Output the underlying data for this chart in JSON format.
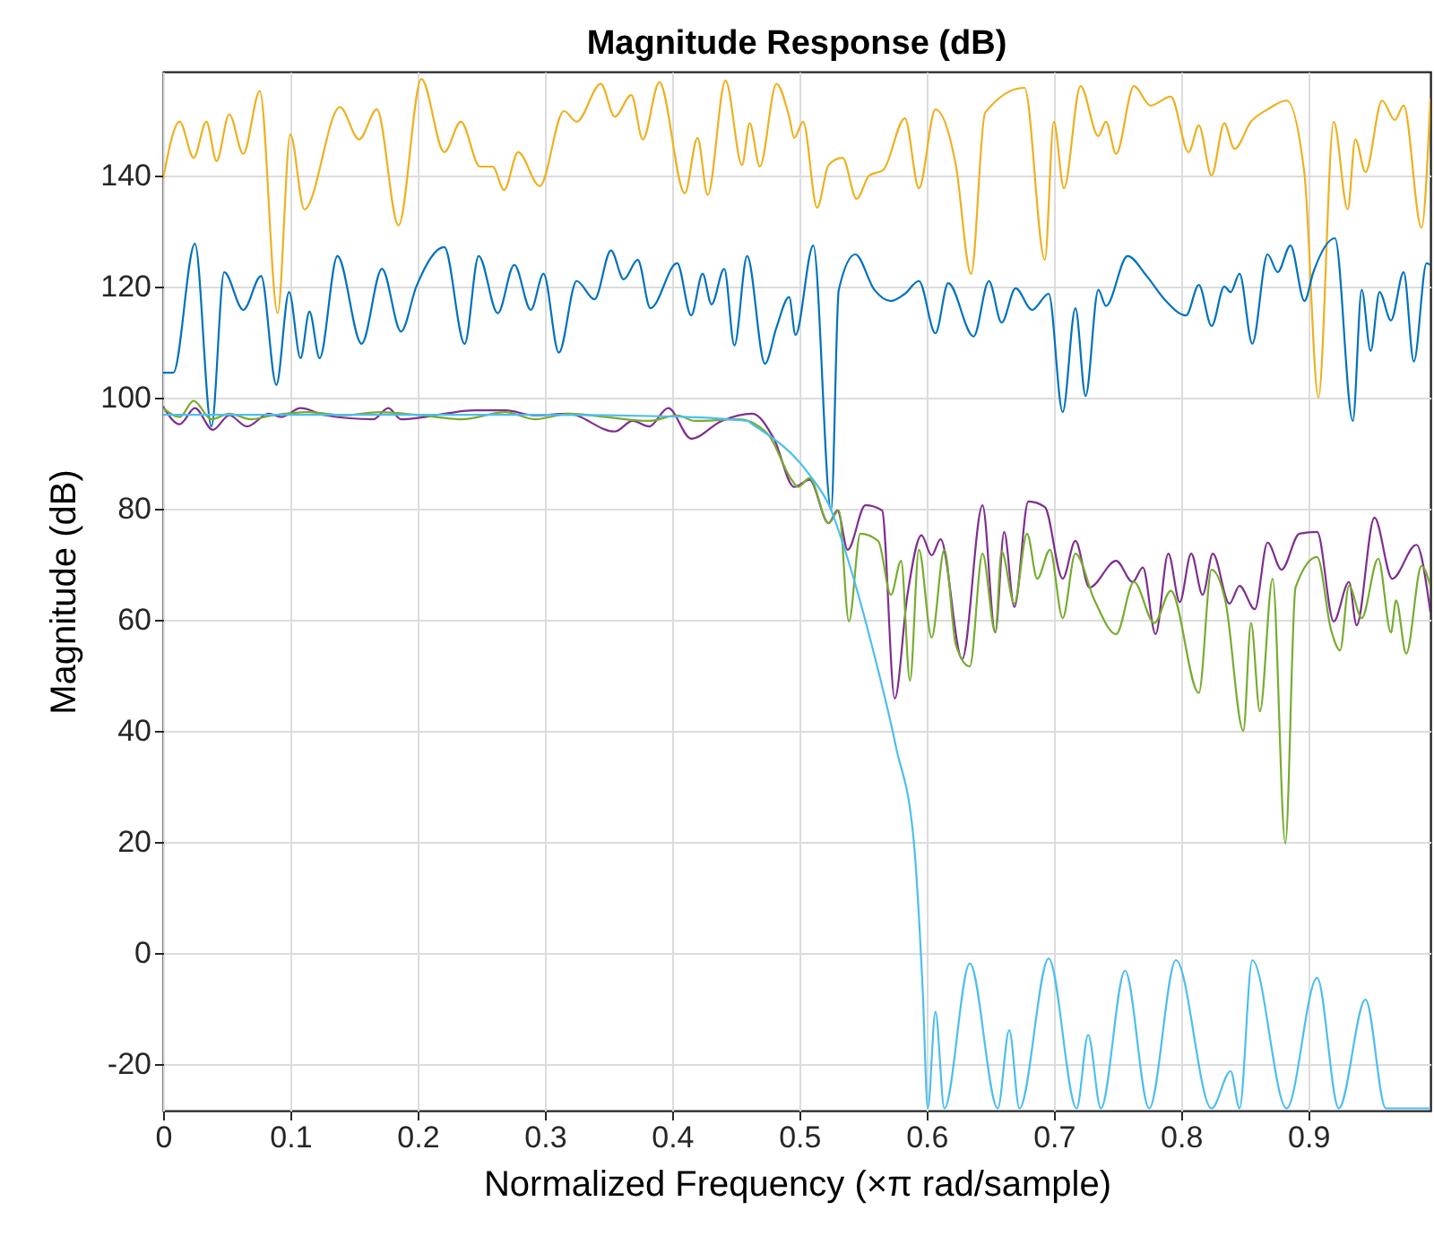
{
  "chart_data": {
    "type": "line",
    "title": "Magnitude Response (dB)",
    "xlabel": "Normalized Frequency (×π rad/sample)",
    "ylabel": "Magnitude (dB)",
    "xlim": [
      0,
      0.996
    ],
    "ylim": [
      -28.4,
      158.7
    ],
    "xticks": [
      0,
      0.1,
      0.2,
      0.3,
      0.4,
      0.5,
      0.6,
      0.7,
      0.8,
      0.9
    ],
    "yticks": [
      -20,
      0,
      20,
      40,
      60,
      80,
      100,
      120,
      140
    ],
    "grid": true,
    "marker": "none",
    "line_style": "solid",
    "series": [
      {
        "color": "#edb120",
        "x": [
          0,
          0.013,
          0.024,
          0.034,
          0.042,
          0.052,
          0.063,
          0.076,
          0.09,
          0.1,
          0.111,
          0.139,
          0.154,
          0.168,
          0.185,
          0.203,
          0.221,
          0.234,
          0.249,
          0.259,
          0.268,
          0.279,
          0.296,
          0.315,
          0.325,
          0.344,
          0.355,
          0.368,
          0.377,
          0.39,
          0.41,
          0.42,
          0.428,
          0.442,
          0.455,
          0.461,
          0.469,
          0.482,
          0.492,
          0.496,
          0.503,
          0.514,
          0.523,
          0.534,
          0.545,
          0.555,
          0.566,
          0.583,
          0.594,
          0.607,
          0.623,
          0.635,
          0.646,
          0.677,
          0.693,
          0.7,
          0.708,
          0.721,
          0.735,
          0.741,
          0.749,
          0.763,
          0.776,
          0.792,
          0.806,
          0.814,
          0.824,
          0.834,
          0.842,
          0.855,
          0.868,
          0.883,
          0.897,
          0.908,
          0.92,
          0.931,
          0.937,
          0.945,
          0.958,
          0.968,
          0.975,
          0.989,
          0.996
        ],
        "values": [
          139.4,
          149.7,
          143.2,
          149.7,
          142.6,
          151,
          143.9,
          155.2,
          115.2,
          147.4,
          133.9,
          152.3,
          146.5,
          151.9,
          131,
          157.4,
          144.2,
          149.7,
          141.6,
          141.6,
          137.4,
          144.2,
          138.1,
          151.6,
          149.7,
          156.5,
          150.6,
          154.5,
          146.5,
          156.8,
          136.8,
          146.8,
          136.5,
          157.1,
          141.9,
          149.4,
          141.6,
          156.5,
          150.6,
          146.8,
          149.7,
          134.2,
          141.9,
          143.2,
          135.8,
          140,
          141,
          150.3,
          137.7,
          151.9,
          141.9,
          122.3,
          151.3,
          155.8,
          124.8,
          149.7,
          137.7,
          156.1,
          147.1,
          149.7,
          143.9,
          156.1,
          152.6,
          154.2,
          144.2,
          149,
          140,
          149.4,
          144.8,
          149.7,
          151.9,
          153.5,
          140.3,
          100,
          149.7,
          133.9,
          146.5,
          140.6,
          153.5,
          150,
          152.6,
          130.6,
          153.9
        ]
      },
      {
        "color": "#0072bd",
        "x": [
          0,
          0.008,
          0.025,
          0.038,
          0.048,
          0.063,
          0.077,
          0.089,
          0.099,
          0.108,
          0.115,
          0.123,
          0.137,
          0.156,
          0.172,
          0.187,
          0.199,
          0.221,
          0.237,
          0.248,
          0.263,
          0.276,
          0.289,
          0.299,
          0.311,
          0.325,
          0.339,
          0.352,
          0.362,
          0.373,
          0.383,
          0.404,
          0.415,
          0.424,
          0.431,
          0.441,
          0.449,
          0.459,
          0.473,
          0.482,
          0.492,
          0.497,
          0.511,
          0.525,
          0.531,
          0.544,
          0.559,
          0.572,
          0.583,
          0.594,
          0.607,
          0.617,
          0.637,
          0.649,
          0.659,
          0.67,
          0.683,
          0.696,
          0.707,
          0.717,
          0.725,
          0.735,
          0.741,
          0.758,
          0.773,
          0.787,
          0.804,
          0.814,
          0.824,
          0.834,
          0.839,
          0.846,
          0.856,
          0.868,
          0.876,
          0.886,
          0.897,
          0.904,
          0.921,
          0.935,
          0.942,
          0.949,
          0.956,
          0.965,
          0.975,
          0.983,
          0.993,
          0.996
        ],
        "values": [
          104.5,
          104.5,
          127.7,
          94.8,
          122.6,
          115.8,
          121.9,
          102.3,
          119,
          107.1,
          115.5,
          107.1,
          125.5,
          109.7,
          123.2,
          111.9,
          120,
          127.1,
          109.7,
          125.5,
          115.2,
          123.9,
          115.8,
          122.3,
          108.1,
          121,
          117.7,
          126.5,
          121.3,
          124.8,
          116.1,
          124.2,
          114.8,
          122.3,
          116.8,
          123.2,
          109.4,
          125.5,
          106.1,
          112.6,
          118.1,
          111.3,
          127.4,
          79.7,
          119.4,
          125.8,
          119.4,
          117.4,
          118.7,
          121,
          111.6,
          120.6,
          111,
          121,
          113.5,
          119.7,
          115.8,
          118.7,
          97.4,
          116.1,
          100.3,
          119.4,
          116.5,
          125.5,
          121.9,
          117.7,
          114.8,
          120.3,
          112.9,
          120,
          119,
          122.3,
          109.7,
          125.8,
          122.6,
          127.4,
          117.4,
          122.6,
          128.7,
          95.8,
          119.4,
          108.4,
          119,
          113.9,
          122.6,
          106.5,
          124.2,
          123.9
        ]
      },
      {
        "color": "#7e2f8e",
        "x": [
          0,
          0.013,
          0.025,
          0.039,
          0.052,
          0.066,
          0.083,
          0.093,
          0.108,
          0.128,
          0.165,
          0.177,
          0.187,
          0.245,
          0.269,
          0.292,
          0.318,
          0.355,
          0.369,
          0.382,
          0.397,
          0.415,
          0.439,
          0.463,
          0.48,
          0.496,
          0.508,
          0.523,
          0.53,
          0.538,
          0.552,
          0.565,
          0.575,
          0.585,
          0.596,
          0.604,
          0.611,
          0.628,
          0.644,
          0.654,
          0.661,
          0.669,
          0.68,
          0.693,
          0.707,
          0.717,
          0.728,
          0.749,
          0.762,
          0.77,
          0.78,
          0.79,
          0.799,
          0.808,
          0.817,
          0.825,
          0.838,
          0.846,
          0.858,
          0.868,
          0.879,
          0.893,
          0.907,
          0.92,
          0.932,
          0.938,
          0.952,
          0.966,
          0.985,
          0.996
        ],
        "values": [
          98.4,
          95.2,
          98.1,
          94.2,
          96.8,
          94.8,
          97.1,
          96.5,
          98.1,
          96.8,
          96.1,
          98.1,
          96.1,
          97.7,
          97.7,
          96.8,
          97.1,
          93.9,
          95.8,
          94.8,
          98.1,
          92.6,
          95.8,
          97.1,
          92.6,
          83.9,
          85.2,
          77.4,
          79.7,
          72.6,
          80.6,
          79.7,
          45.8,
          64.5,
          75.2,
          71.6,
          74.5,
          52.9,
          80.6,
          57.7,
          75.8,
          62.3,
          81.3,
          80.3,
          67.4,
          74.2,
          65.8,
          70.6,
          66.8,
          69.4,
          57.4,
          71.9,
          63.2,
          71.9,
          64.5,
          71.9,
          62.9,
          66.1,
          61.9,
          73.9,
          69,
          75.5,
          75.8,
          59.7,
          66.8,
          59,
          78.4,
          67.4,
          73.5,
          61.3
        ]
      },
      {
        "color": "#77ac30",
        "x": [
          0,
          0.013,
          0.024,
          0.038,
          0.052,
          0.069,
          0.086,
          0.114,
          0.142,
          0.17,
          0.203,
          0.235,
          0.269,
          0.292,
          0.32,
          0.348,
          0.382,
          0.404,
          0.418,
          0.452,
          0.475,
          0.494,
          0.499,
          0.508,
          0.523,
          0.531,
          0.539,
          0.548,
          0.562,
          0.572,
          0.58,
          0.587,
          0.594,
          0.604,
          0.614,
          0.623,
          0.634,
          0.644,
          0.654,
          0.659,
          0.669,
          0.679,
          0.687,
          0.697,
          0.707,
          0.717,
          0.732,
          0.749,
          0.763,
          0.779,
          0.792,
          0.814,
          0.824,
          0.835,
          0.849,
          0.855,
          0.862,
          0.872,
          0.882,
          0.89,
          0.907,
          0.918,
          0.925,
          0.932,
          0.942,
          0.955,
          0.965,
          0.969,
          0.977,
          0.989,
          0.996
        ],
        "values": [
          98.1,
          96.5,
          99.4,
          96.1,
          97.1,
          96.1,
          96.8,
          97.4,
          96.8,
          97.4,
          96.8,
          96.1,
          97.4,
          96.1,
          97.1,
          96.5,
          95.8,
          96.8,
          95.8,
          96.1,
          93.5,
          85.2,
          83.9,
          85.5,
          77.4,
          79.7,
          59.7,
          75.5,
          74.2,
          64.5,
          70.6,
          49,
          72.6,
          56.8,
          72.6,
          55.5,
          51.6,
          71.9,
          57.7,
          72.3,
          62.9,
          75.5,
          67.4,
          72.6,
          60.3,
          71.9,
          63.5,
          57.4,
          66.8,
          59.4,
          65.2,
          46.8,
          69,
          63.2,
          40,
          59.4,
          43.5,
          67.4,
          19.7,
          65.8,
          71.3,
          58.1,
          54.5,
          66.1,
          60.3,
          71,
          57.7,
          63.5,
          53.9,
          69.7,
          66.1
        ]
      },
      {
        "color": "#4dbeee",
        "x": [
          0,
          0.1,
          0.2,
          0.3,
          0.4,
          0.459,
          0.463,
          0.508,
          0.524,
          0.538,
          0.558,
          0.576,
          0.59,
          0.597,
          0.601,
          0.607,
          0.614,
          0.634,
          0.656,
          0.665,
          0.673,
          0.696,
          0.718,
          0.727,
          0.737,
          0.756,
          0.775,
          0.796,
          0.824,
          0.839,
          0.846,
          0.856,
          0.883,
          0.907,
          0.924,
          0.945,
          0.961,
          0.989,
          0.996
        ],
        "values": [
          96.9,
          96.9,
          96.9,
          96.9,
          96.6,
          95.8,
          95.2,
          86.1,
          80.3,
          71,
          54.5,
          37.1,
          20,
          -6.8,
          -28,
          -10.6,
          -28,
          -1.9,
          -28,
          -13.9,
          -28,
          -1,
          -28,
          -14.8,
          -28,
          -3.2,
          -28,
          -1.3,
          -28,
          -21.3,
          -28,
          -1.3,
          -28,
          -4.5,
          -28,
          -8.4,
          -28,
          -28,
          -28
        ]
      }
    ]
  }
}
